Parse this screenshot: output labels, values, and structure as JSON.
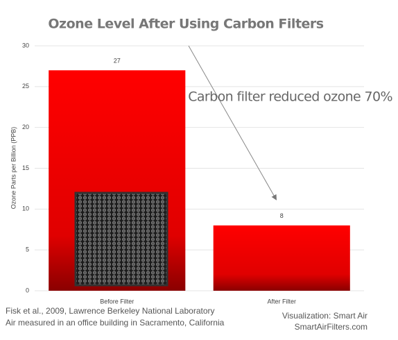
{
  "chart_data": {
    "type": "bar",
    "title": "Ozone Level After Using Carbon Filters",
    "y_label": "Ozone Parts per Billion (PPB)",
    "categories": [
      "Before Filter",
      "After Filter"
    ],
    "values": [
      27,
      8
    ],
    "color": "#ff0000",
    "ylim": [
      0,
      30
    ],
    "yticks": [
      0,
      5,
      10,
      15,
      20,
      25,
      30
    ],
    "grid": true,
    "annotation": "Carbon filter reduced ozone 70%",
    "source": [
      "Fisk et al., 2009, Lawrence Berkeley National Laboratory",
      "Air measured in an office building in Sacramento, California"
    ],
    "credit": [
      "Visualization: Smart Air",
      "SmartAirFilters.com"
    ]
  }
}
